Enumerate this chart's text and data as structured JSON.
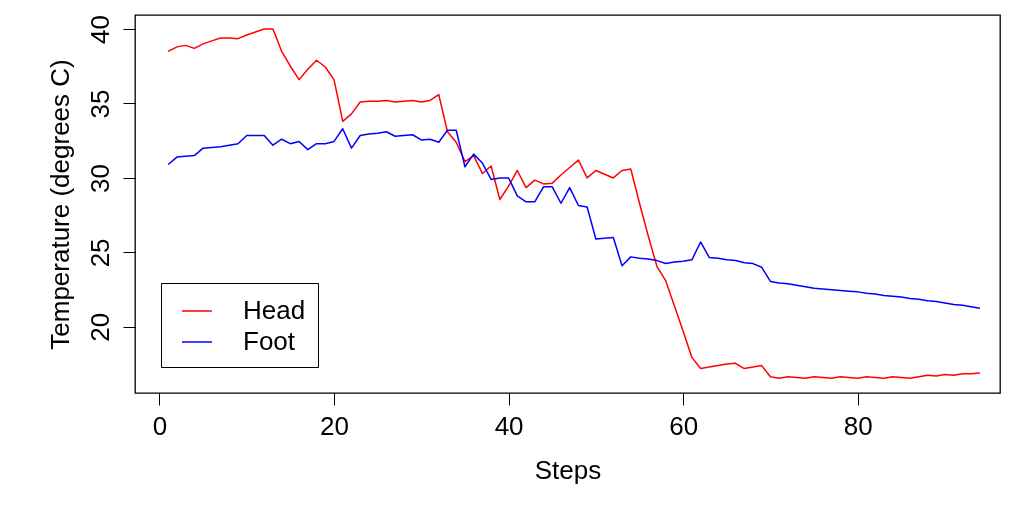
{
  "chart_data": {
    "type": "line",
    "xlabel": "Steps",
    "ylabel": "Temperature (degrees C)",
    "x": [
      1,
      2,
      3,
      4,
      5,
      6,
      7,
      8,
      9,
      10,
      11,
      12,
      13,
      14,
      15,
      16,
      17,
      18,
      19,
      20,
      21,
      22,
      23,
      24,
      25,
      26,
      27,
      28,
      29,
      30,
      31,
      32,
      33,
      34,
      35,
      36,
      37,
      38,
      39,
      40,
      41,
      42,
      43,
      44,
      45,
      46,
      47,
      48,
      49,
      50,
      51,
      52,
      53,
      54,
      55,
      56,
      57,
      58,
      59,
      60,
      61,
      62,
      63,
      64,
      65,
      66,
      67,
      68,
      69,
      70,
      71,
      72,
      73,
      74,
      75,
      76,
      77,
      78,
      79,
      80,
      81,
      82,
      83,
      84,
      85,
      86,
      87,
      88,
      89,
      90,
      91,
      92,
      93,
      94
    ],
    "series": [
      {
        "name": "Head",
        "color": "#ff0000",
        "values": [
          38.5,
          38.8,
          38.9,
          38.7,
          39.0,
          39.2,
          39.4,
          39.4,
          39.35,
          39.6,
          39.8,
          40.0,
          40.0,
          38.5,
          37.5,
          36.6,
          37.3,
          37.9,
          37.45,
          36.6,
          33.8,
          34.3,
          35.1,
          35.15,
          35.15,
          35.2,
          35.1,
          35.15,
          35.2,
          35.1,
          35.2,
          35.6,
          33.1,
          32.4,
          31.1,
          31.5,
          30.3,
          30.8,
          28.55,
          29.45,
          30.5,
          29.35,
          29.85,
          29.6,
          29.65,
          30.2,
          30.7,
          31.2,
          30.0,
          30.5,
          30.25,
          30.0,
          30.5,
          30.6,
          28.3,
          26.1,
          24.05,
          23.1,
          21.4,
          19.7,
          17.95,
          17.2,
          17.3,
          17.4,
          17.5,
          17.55,
          17.2,
          17.3,
          17.4,
          16.65,
          16.55,
          16.65,
          16.6,
          16.55,
          16.65,
          16.6,
          16.55,
          16.65,
          16.6,
          16.55,
          16.65,
          16.6,
          16.55,
          16.65,
          16.6,
          16.55,
          16.65,
          16.75,
          16.7,
          16.8,
          16.75,
          16.85,
          16.85,
          16.9
        ]
      },
      {
        "name": "Foot",
        "color": "#0000ff",
        "values": [
          30.9,
          31.4,
          31.45,
          31.5,
          32.0,
          32.05,
          32.1,
          32.2,
          32.3,
          32.85,
          32.85,
          32.85,
          32.2,
          32.6,
          32.3,
          32.45,
          31.9,
          32.3,
          32.3,
          32.45,
          33.3,
          32.0,
          32.85,
          32.95,
          33.0,
          33.1,
          32.8,
          32.85,
          32.9,
          32.55,
          32.6,
          32.4,
          33.2,
          33.2,
          30.75,
          31.6,
          31.0,
          29.9,
          30.0,
          30.0,
          28.8,
          28.4,
          28.4,
          29.4,
          29.4,
          28.3,
          29.35,
          28.15,
          28.05,
          25.9,
          25.95,
          26.0,
          24.1,
          24.7,
          24.6,
          24.55,
          24.45,
          24.25,
          24.35,
          24.4,
          24.5,
          25.7,
          24.65,
          24.6,
          24.5,
          24.45,
          24.3,
          24.25,
          24.0,
          23.05,
          22.95,
          22.9,
          22.8,
          22.7,
          22.6,
          22.55,
          22.5,
          22.45,
          22.4,
          22.35,
          22.25,
          22.2,
          22.1,
          22.05,
          22.0,
          21.9,
          21.85,
          21.75,
          21.7,
          21.6,
          21.5,
          21.45,
          21.35,
          21.25
        ]
      }
    ],
    "xlim": [
      -2.8,
      96.3
    ],
    "ylim": [
      15.56,
      40.94
    ],
    "xticks": [
      0,
      20,
      40,
      60,
      80
    ],
    "yticks": [
      20,
      25,
      30,
      35,
      40
    ],
    "legend": "bottom left"
  }
}
